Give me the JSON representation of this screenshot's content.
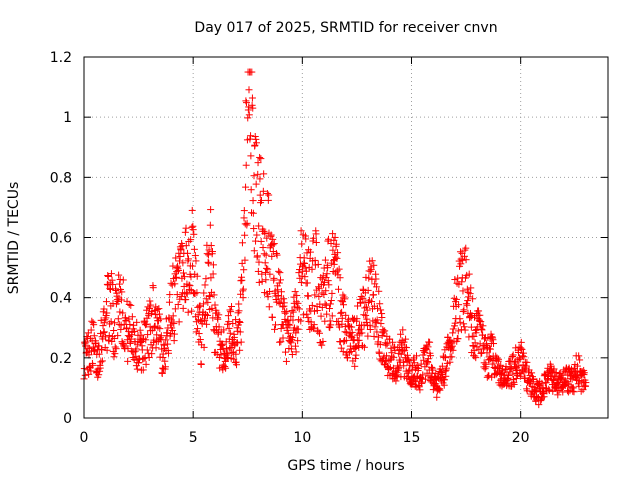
{
  "chart_data": {
    "type": "scatter",
    "title": "Day 017 of 2025, SRMTID for receiver cnvn",
    "xlabel": "GPS time / hours",
    "ylabel": "SRMTID / TECUs",
    "xlim": [
      0,
      24
    ],
    "ylim": [
      0,
      1.2
    ],
    "x_ticks": [
      0,
      5,
      10,
      15,
      20
    ],
    "x_tick_labels": [
      "0",
      "5",
      "10",
      "15",
      "20"
    ],
    "y_ticks": [
      0,
      0.2,
      0.4,
      0.6,
      0.8,
      1.0,
      1.2
    ],
    "y_tick_labels": [
      "0",
      "0.2",
      "0.4",
      "0.6",
      "0.8",
      "1",
      "1.2"
    ],
    "grid": true,
    "marker": "+",
    "color": "#ff0000",
    "series": [
      {
        "name": "SRMTID",
        "x": [
          0.0,
          0.2,
          0.4,
          0.6,
          0.8,
          1.0,
          1.2,
          1.4,
          1.6,
          1.8,
          2.0,
          2.2,
          2.4,
          2.6,
          2.8,
          3.0,
          3.2,
          3.4,
          3.6,
          3.8,
          4.0,
          4.2,
          4.4,
          4.6,
          4.8,
          5.0,
          5.2,
          5.4,
          5.6,
          5.8,
          6.0,
          6.2,
          6.4,
          6.6,
          6.8,
          7.0,
          7.2,
          7.4,
          7.6,
          7.8,
          8.0,
          8.2,
          8.4,
          8.6,
          8.8,
          9.0,
          9.2,
          9.4,
          9.6,
          9.8,
          10.0,
          10.2,
          10.4,
          10.6,
          10.8,
          11.0,
          11.2,
          11.4,
          11.6,
          11.8,
          12.0,
          12.2,
          12.4,
          12.6,
          12.8,
          13.0,
          13.2,
          13.4,
          13.6,
          13.8,
          14.0,
          14.2,
          14.4,
          14.6,
          14.8,
          15.0,
          15.2,
          15.4,
          15.6,
          15.8,
          16.0,
          16.2,
          16.4,
          16.6,
          16.8,
          17.0,
          17.2,
          17.4,
          17.6,
          17.8,
          18.0,
          18.2,
          18.4,
          18.6,
          18.8,
          19.0,
          19.2,
          19.4,
          19.6,
          19.8,
          20.0,
          20.2,
          20.4,
          20.6,
          20.8,
          21.0,
          21.2,
          21.4,
          21.6,
          21.8,
          22.0,
          22.2,
          22.4,
          22.6,
          22.8
        ],
        "y": [
          0.2,
          0.22,
          0.25,
          0.18,
          0.27,
          0.33,
          0.38,
          0.3,
          0.42,
          0.35,
          0.28,
          0.3,
          0.24,
          0.22,
          0.26,
          0.3,
          0.35,
          0.28,
          0.22,
          0.25,
          0.38,
          0.4,
          0.42,
          0.45,
          0.5,
          0.52,
          0.35,
          0.25,
          0.42,
          0.55,
          0.3,
          0.25,
          0.22,
          0.26,
          0.28,
          0.25,
          0.35,
          0.8,
          1.05,
          0.75,
          0.68,
          0.62,
          0.58,
          0.5,
          0.42,
          0.35,
          0.28,
          0.25,
          0.3,
          0.35,
          0.55,
          0.45,
          0.42,
          0.48,
          0.35,
          0.38,
          0.45,
          0.48,
          0.42,
          0.32,
          0.3,
          0.28,
          0.25,
          0.3,
          0.32,
          0.38,
          0.42,
          0.35,
          0.28,
          0.22,
          0.2,
          0.18,
          0.2,
          0.22,
          0.18,
          0.15,
          0.16,
          0.14,
          0.18,
          0.2,
          0.12,
          0.1,
          0.15,
          0.18,
          0.25,
          0.35,
          0.42,
          0.46,
          0.38,
          0.3,
          0.28,
          0.25,
          0.2,
          0.22,
          0.18,
          0.15,
          0.12,
          0.14,
          0.16,
          0.18,
          0.2,
          0.15,
          0.12,
          0.1,
          0.08,
          0.1,
          0.12,
          0.14,
          0.12,
          0.11,
          0.12,
          0.13,
          0.12,
          0.18,
          0.12
        ]
      }
    ]
  }
}
